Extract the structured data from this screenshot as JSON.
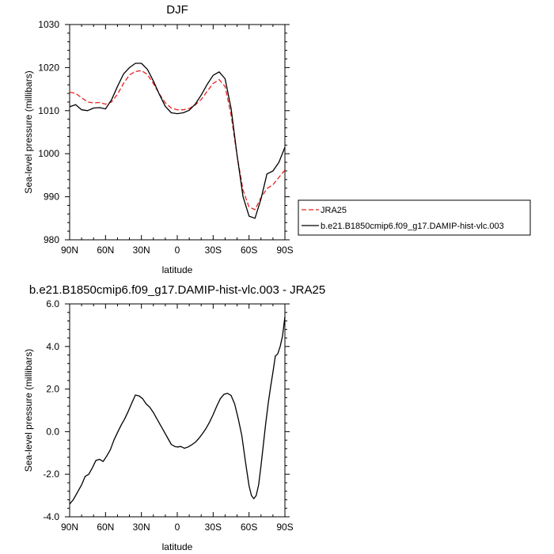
{
  "chart_data": [
    {
      "type": "line",
      "title": "DJF",
      "xlabel": "latitude",
      "ylabel": "Sea-level pressure (millibars)",
      "xlim": [
        90,
        -90
      ],
      "ylim": [
        980,
        1030
      ],
      "xticks": [
        90,
        60,
        30,
        0,
        -30,
        -60,
        -90
      ],
      "xtick_labels": [
        "90N",
        "60N",
        "30N",
        "0",
        "30S",
        "60S",
        "90S"
      ],
      "yticks": [
        980,
        990,
        1000,
        1010,
        1020,
        1030
      ],
      "ytick_labels": [
        "980",
        "990",
        "1000",
        "1010",
        "1020",
        "1030"
      ],
      "legend": "outside-right",
      "series": [
        {
          "name": "JRA25",
          "color": "#e8211d",
          "dash": "dashed",
          "x": [
            90,
            85,
            80,
            75,
            70,
            65,
            60,
            55,
            50,
            45,
            40,
            35,
            30,
            25,
            20,
            15,
            10,
            5,
            0,
            -5,
            -10,
            -15,
            -20,
            -25,
            -30,
            -35,
            -40,
            -45,
            -50,
            -55,
            -60,
            -65,
            -70,
            -75,
            -80,
            -85,
            -90
          ],
          "y": [
            1014.3,
            1014.0,
            1013.0,
            1012.0,
            1011.8,
            1011.9,
            1011.5,
            1012.0,
            1013.8,
            1016.3,
            1018.3,
            1019.1,
            1019.3,
            1018.4,
            1016.3,
            1013.9,
            1011.8,
            1010.6,
            1010.2,
            1010.2,
            1010.5,
            1011.3,
            1012.6,
            1014.5,
            1016.3,
            1017.2,
            1015.6,
            1009.0,
            999.5,
            991.5,
            987.6,
            987.0,
            989.8,
            991.9,
            992.8,
            994.5,
            996.2
          ]
        },
        {
          "name": "b.e21.B1850cmip6.f09_g17.DAMIP-hist-vlc.003",
          "color": "#000000",
          "dash": "solid",
          "x": [
            90,
            85,
            80,
            75,
            70,
            65,
            60,
            55,
            50,
            45,
            40,
            35,
            30,
            25,
            20,
            15,
            10,
            5,
            0,
            -5,
            -10,
            -15,
            -20,
            -25,
            -30,
            -35,
            -40,
            -45,
            -50,
            -55,
            -60,
            -65,
            -70,
            -75,
            -80,
            -85,
            -90
          ],
          "y": [
            1010.9,
            1011.4,
            1010.2,
            1010.0,
            1010.6,
            1010.7,
            1010.4,
            1012.5,
            1015.6,
            1018.5,
            1020.0,
            1021.0,
            1021.0,
            1019.6,
            1016.9,
            1013.8,
            1011.0,
            1009.5,
            1009.3,
            1009.5,
            1010.1,
            1011.5,
            1013.6,
            1016.1,
            1018.2,
            1019.0,
            1017.4,
            1010.5,
            999.6,
            990.0,
            985.5,
            985.0,
            989.5,
            995.3,
            996.0,
            998.0,
            1001.5
          ]
        }
      ]
    },
    {
      "type": "line",
      "title": "b.e21.B1850cmip6.f09_g17.DAMIP-hist-vlc.003 - JRA25",
      "xlabel": "latitude",
      "ylabel": "Sea-level pressure (millibars)",
      "xlim": [
        90,
        -90
      ],
      "ylim": [
        -4,
        6
      ],
      "xticks": [
        90,
        60,
        30,
        0,
        -30,
        -60,
        -90
      ],
      "xtick_labels": [
        "90N",
        "60N",
        "30N",
        "0",
        "30S",
        "60S",
        "90S"
      ],
      "yticks": [
        -4,
        -2,
        0,
        2,
        4,
        6
      ],
      "ytick_labels": [
        "-4.0",
        "-2.0",
        "0.0",
        "2.0",
        "4.0",
        "6.0"
      ],
      "series": [
        {
          "color": "#000000",
          "dash": "solid",
          "x": [
            90,
            87,
            84,
            80,
            77,
            74,
            71,
            68,
            65,
            62,
            59,
            56,
            53,
            50,
            47,
            44,
            41,
            38,
            35,
            32,
            29,
            26,
            23,
            20,
            17,
            14,
            11,
            8,
            5,
            2,
            0,
            -3,
            -6,
            -9,
            -12,
            -15,
            -18,
            -21,
            -24,
            -27,
            -30,
            -33,
            -36,
            -39,
            -42,
            -45,
            -48,
            -51,
            -54,
            -57,
            -60,
            -62,
            -64,
            -66,
            -68,
            -70,
            -72,
            -74,
            -76,
            -78,
            -80,
            -82,
            -84,
            -86,
            -88,
            -90
          ],
          "y": [
            -3.4,
            -3.2,
            -2.9,
            -2.5,
            -2.1,
            -2.0,
            -1.7,
            -1.35,
            -1.3,
            -1.4,
            -1.15,
            -0.85,
            -0.4,
            -0.05,
            0.3,
            0.6,
            0.95,
            1.35,
            1.72,
            1.68,
            1.55,
            1.3,
            1.15,
            0.9,
            0.6,
            0.3,
            0.0,
            -0.3,
            -0.6,
            -0.7,
            -0.72,
            -0.7,
            -0.78,
            -0.72,
            -0.62,
            -0.5,
            -0.32,
            -0.1,
            0.15,
            0.45,
            0.8,
            1.2,
            1.55,
            1.75,
            1.8,
            1.7,
            1.3,
            0.6,
            -0.2,
            -1.4,
            -2.55,
            -3.0,
            -3.15,
            -3.0,
            -2.5,
            -1.6,
            -0.6,
            0.4,
            1.3,
            2.1,
            2.8,
            3.55,
            3.65,
            4.0,
            4.5,
            5.4
          ]
        }
      ]
    }
  ]
}
